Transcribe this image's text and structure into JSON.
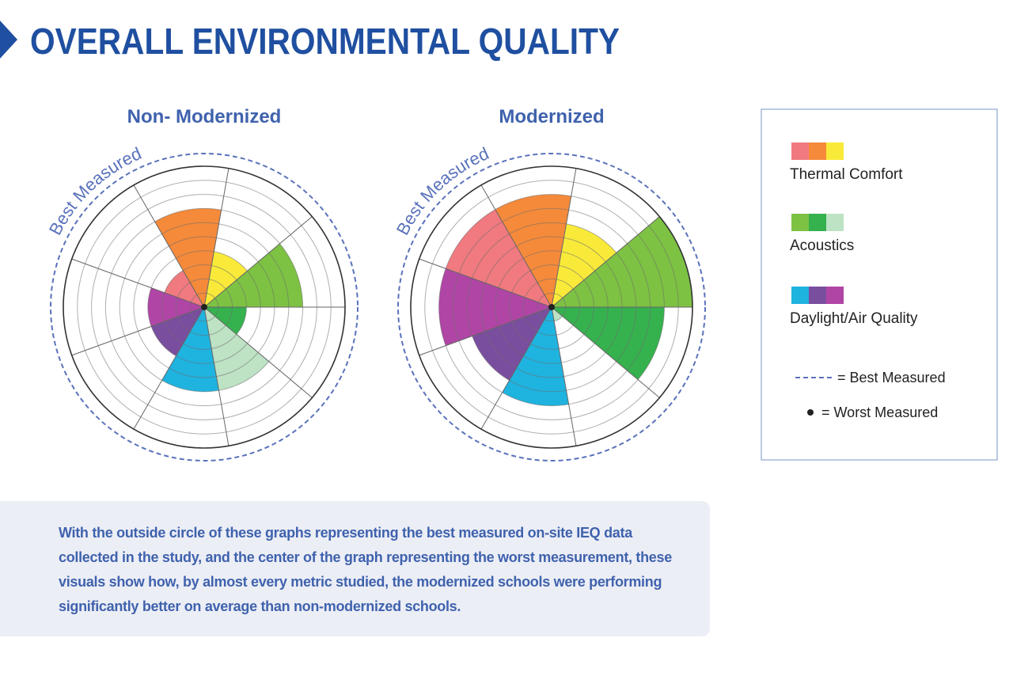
{
  "title": "OVERALL ENVIRONMENTAL QUALITY",
  "legend": {
    "groups": [
      {
        "name": "Thermal Comfort",
        "colors": [
          "#f07a7f",
          "#f58a3a",
          "#f9ea3a"
        ]
      },
      {
        "name": "Acoustics",
        "colors": [
          "#7dc243",
          "#35b14e",
          "#bde2c4"
        ]
      },
      {
        "name": "Daylight/Air Quality",
        "colors": [
          "#1fb3e0",
          "#7a4e9e",
          "#b045a6"
        ]
      }
    ],
    "best": "= Best Measured",
    "worst": "= Worst Measured"
  },
  "chart_data": [
    {
      "type": "polar_area",
      "title": "Non- Modernized",
      "annotation": "Best Measured",
      "values": [
        3,
        7,
        4,
        7,
        3,
        6,
        6,
        4,
        4
      ],
      "rlim": [
        0,
        10
      ],
      "rticks": [
        1,
        2,
        3,
        4,
        5,
        6,
        7,
        8,
        9,
        10
      ]
    },
    {
      "type": "polar_area",
      "title": "Modernized",
      "annotation": "Best Measured",
      "values": [
        8,
        8,
        6,
        10,
        8,
        1,
        7,
        6,
        8
      ],
      "rlim": [
        0,
        10
      ],
      "rticks": [
        1,
        2,
        3,
        4,
        5,
        6,
        7,
        8,
        9,
        10
      ]
    }
  ],
  "caption": {
    "text": "With the outside circle of these graphs representing the best measured on-site IEQ data collected in the study, and the center of the graph representing the worst measurement, these visuals show how, by almost every metric studied, the ",
    "bold": "modernized schools were performing significantly better on average than non-modernized schools."
  }
}
